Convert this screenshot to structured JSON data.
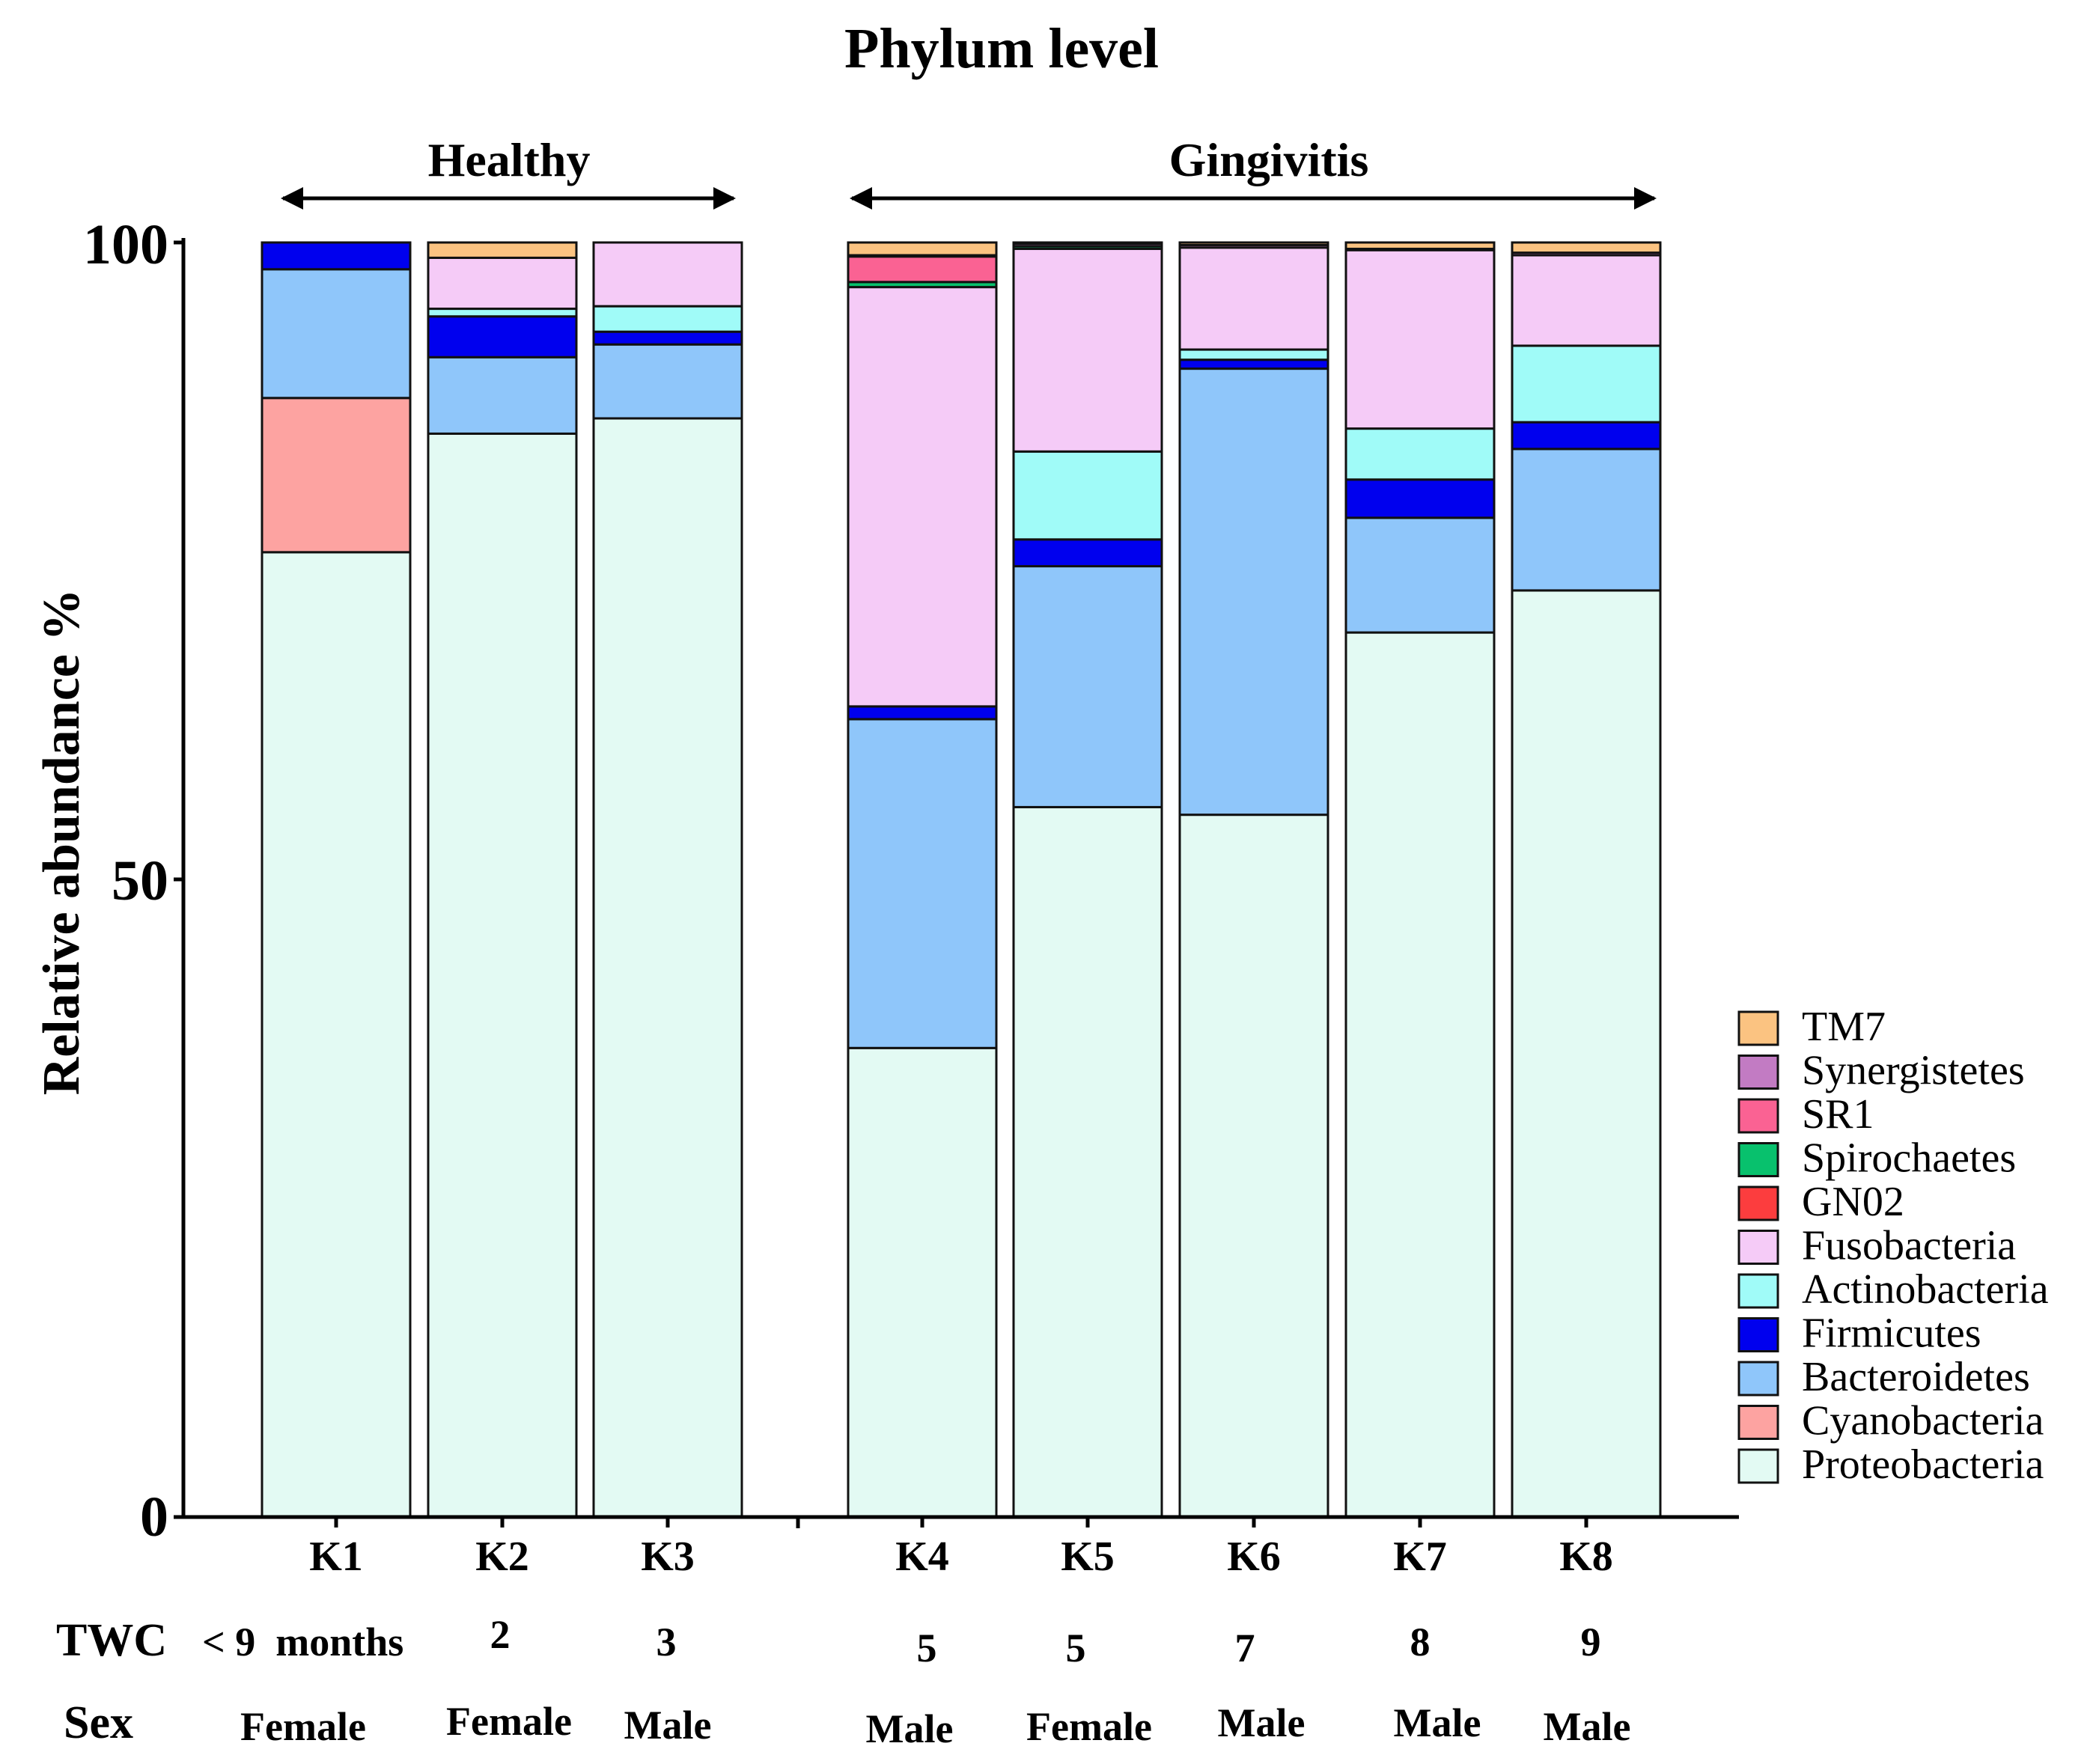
{
  "chart_data": {
    "type": "bar",
    "stacked": true,
    "title": "Phylum level",
    "ylabel": "Relative abundance %",
    "ylim": [
      0,
      100
    ],
    "yticks": [
      "0",
      "50",
      "100"
    ],
    "groups": [
      {
        "label": "Healthy",
        "categories": [
          "K1",
          "K2",
          "K3"
        ]
      },
      {
        "label": "Gingivitis",
        "categories": [
          "K4",
          "K5",
          "K6",
          "K7",
          "K8"
        ]
      }
    ],
    "categories": [
      "K1",
      "K2",
      "K3",
      "K4",
      "K5",
      "K6",
      "K7",
      "K8"
    ],
    "row_headers": {
      "twc": "TWC",
      "sex": "Sex"
    },
    "twc": [
      "< 9  months",
      "2",
      "3",
      "5",
      "5",
      "7",
      "8",
      "9"
    ],
    "sex": [
      "Female",
      "Female",
      "Male",
      "Male",
      "Female",
      "Male",
      "Male",
      "Male"
    ],
    "legend_position": "right",
    "series": [
      {
        "name": "Proteobacteria",
        "color": "#e3faf3",
        "values": [
          75.7,
          85.0,
          86.2,
          36.8,
          55.7,
          55.1,
          69.4,
          72.7
        ]
      },
      {
        "name": "Cyanobacteria",
        "color": "#fda3a1",
        "values": [
          12.1,
          0,
          0,
          0,
          0,
          0,
          0,
          0
        ]
      },
      {
        "name": "Bacteroidetes",
        "color": "#8fc6fa",
        "values": [
          10.1,
          6.0,
          5.8,
          25.8,
          18.9,
          35.0,
          9.0,
          11.1
        ]
      },
      {
        "name": "Firmicutes",
        "color": "#0000ee",
        "values": [
          2.1,
          3.2,
          1.0,
          1.0,
          2.1,
          0.7,
          3.0,
          2.1
        ]
      },
      {
        "name": "Actinobacteria",
        "color": "#a0fbf8",
        "values": [
          0,
          0.6,
          2.0,
          0,
          6.9,
          0.8,
          4.0,
          6.0
        ]
      },
      {
        "name": "Fusobacteria",
        "color": "#f5cbf7",
        "values": [
          0,
          4.0,
          5.0,
          32.9,
          15.9,
          8.0,
          14.0,
          7.1
        ]
      },
      {
        "name": "GN02",
        "color": "#fc3d3e",
        "values": [
          0,
          0,
          0,
          0,
          0,
          0,
          0,
          0
        ]
      },
      {
        "name": "Spirochaetes",
        "color": "#08c16d",
        "values": [
          0,
          0,
          0,
          0.4,
          0.2,
          0,
          0,
          0
        ]
      },
      {
        "name": "SR1",
        "color": "#fa6293",
        "values": [
          0,
          0,
          0,
          2.0,
          0,
          0,
          0,
          0
        ]
      },
      {
        "name": "Synergistetes",
        "color": "#c27bc3",
        "values": [
          0,
          0,
          0,
          0.1,
          0.2,
          0.2,
          0.1,
          0.2
        ]
      },
      {
        "name": "TM7",
        "color": "#fbc381",
        "values": [
          0,
          1.2,
          0,
          1.0,
          0.1,
          0.2,
          0.5,
          0.8
        ]
      }
    ]
  }
}
